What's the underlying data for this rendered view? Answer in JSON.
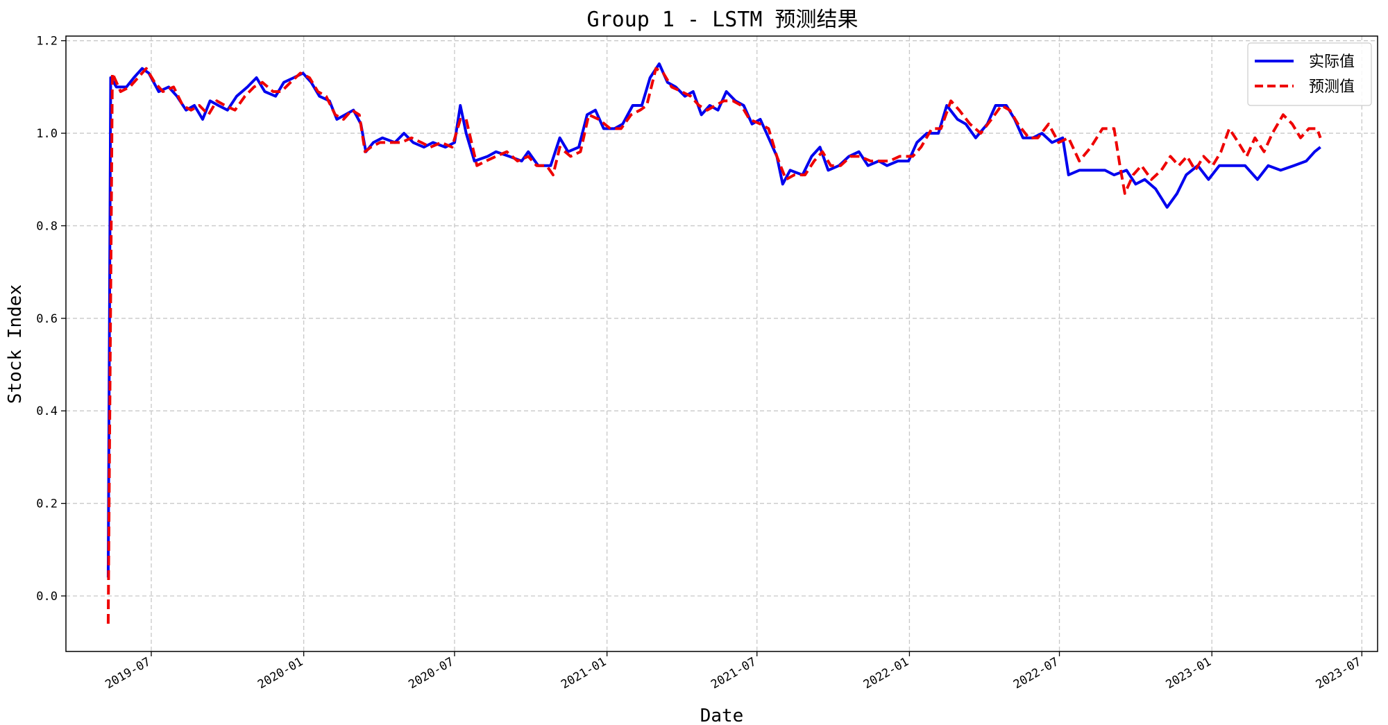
{
  "chart_data": {
    "type": "line",
    "title": "Group 1 - LSTM 预测结果",
    "xlabel": "Date",
    "ylabel": "Stock Index",
    "xlim": [
      "2019-03-20",
      "2023-07-20"
    ],
    "ylim": [
      -0.12,
      1.21
    ],
    "x_ticks": [
      "2019-07",
      "2020-01",
      "2020-07",
      "2021-01",
      "2021-07",
      "2022-01",
      "2022-07",
      "2023-01",
      "2023-07"
    ],
    "y_ticks": [
      0.0,
      0.2,
      0.4,
      0.6,
      0.8,
      1.0,
      1.2
    ],
    "y_tick_labels": [
      "0.0",
      "0.2",
      "0.4",
      "0.6",
      "0.8",
      "1.0",
      "1.2"
    ],
    "grid": true,
    "legend_position": "upper-right",
    "series": [
      {
        "name": "实际值",
        "color": "#0000ee",
        "style": "solid",
        "points": [
          [
            "2019-05-10",
            0.04
          ],
          [
            "2019-05-13",
            1.12
          ],
          [
            "2019-05-20",
            1.1
          ],
          [
            "2019-06-01",
            1.1
          ],
          [
            "2019-06-10",
            1.12
          ],
          [
            "2019-06-20",
            1.14
          ],
          [
            "2019-06-28",
            1.13
          ],
          [
            "2019-07-10",
            1.09
          ],
          [
            "2019-07-22",
            1.1
          ],
          [
            "2019-08-01",
            1.08
          ],
          [
            "2019-08-12",
            1.05
          ],
          [
            "2019-08-22",
            1.06
          ],
          [
            "2019-09-01",
            1.03
          ],
          [
            "2019-09-10",
            1.07
          ],
          [
            "2019-09-20",
            1.06
          ],
          [
            "2019-10-01",
            1.05
          ],
          [
            "2019-10-12",
            1.08
          ],
          [
            "2019-10-25",
            1.1
          ],
          [
            "2019-11-05",
            1.12
          ],
          [
            "2019-11-15",
            1.09
          ],
          [
            "2019-11-28",
            1.08
          ],
          [
            "2019-12-08",
            1.11
          ],
          [
            "2019-12-20",
            1.12
          ],
          [
            "2019-12-31",
            1.13
          ],
          [
            "2020-01-10",
            1.11
          ],
          [
            "2020-01-20",
            1.08
          ],
          [
            "2020-02-01",
            1.07
          ],
          [
            "2020-02-10",
            1.03
          ],
          [
            "2020-02-20",
            1.04
          ],
          [
            "2020-03-01",
            1.05
          ],
          [
            "2020-03-10",
            1.02
          ],
          [
            "2020-03-16",
            0.96
          ],
          [
            "2020-03-25",
            0.98
          ],
          [
            "2020-04-05",
            0.99
          ],
          [
            "2020-04-20",
            0.98
          ],
          [
            "2020-05-01",
            1.0
          ],
          [
            "2020-05-12",
            0.98
          ],
          [
            "2020-05-25",
            0.97
          ],
          [
            "2020-06-05",
            0.98
          ],
          [
            "2020-06-20",
            0.97
          ],
          [
            "2020-07-01",
            0.98
          ],
          [
            "2020-07-08",
            1.06
          ],
          [
            "2020-07-15",
            1.0
          ],
          [
            "2020-07-25",
            0.94
          ],
          [
            "2020-08-10",
            0.95
          ],
          [
            "2020-08-20",
            0.96
          ],
          [
            "2020-09-05",
            0.95
          ],
          [
            "2020-09-20",
            0.94
          ],
          [
            "2020-09-28",
            0.96
          ],
          [
            "2020-10-10",
            0.93
          ],
          [
            "2020-10-25",
            0.93
          ],
          [
            "2020-11-05",
            0.99
          ],
          [
            "2020-11-15",
            0.96
          ],
          [
            "2020-11-28",
            0.97
          ],
          [
            "2020-12-08",
            1.04
          ],
          [
            "2020-12-18",
            1.05
          ],
          [
            "2020-12-28",
            1.01
          ],
          [
            "2021-01-10",
            1.01
          ],
          [
            "2021-01-20",
            1.02
          ],
          [
            "2021-02-01",
            1.06
          ],
          [
            "2021-02-12",
            1.06
          ],
          [
            "2021-02-22",
            1.12
          ],
          [
            "2021-03-05",
            1.15
          ],
          [
            "2021-03-15",
            1.11
          ],
          [
            "2021-03-25",
            1.1
          ],
          [
            "2021-04-05",
            1.08
          ],
          [
            "2021-04-15",
            1.09
          ],
          [
            "2021-04-25",
            1.04
          ],
          [
            "2021-05-05",
            1.06
          ],
          [
            "2021-05-15",
            1.05
          ],
          [
            "2021-05-25",
            1.09
          ],
          [
            "2021-06-05",
            1.07
          ],
          [
            "2021-06-15",
            1.06
          ],
          [
            "2021-06-25",
            1.02
          ],
          [
            "2021-07-05",
            1.03
          ],
          [
            "2021-07-15",
            0.99
          ],
          [
            "2021-07-25",
            0.95
          ],
          [
            "2021-08-01",
            0.89
          ],
          [
            "2021-08-10",
            0.92
          ],
          [
            "2021-08-25",
            0.91
          ],
          [
            "2021-09-05",
            0.95
          ],
          [
            "2021-09-15",
            0.97
          ],
          [
            "2021-09-25",
            0.92
          ],
          [
            "2021-10-08",
            0.93
          ],
          [
            "2021-10-20",
            0.95
          ],
          [
            "2021-11-01",
            0.96
          ],
          [
            "2021-11-12",
            0.93
          ],
          [
            "2021-11-25",
            0.94
          ],
          [
            "2021-12-05",
            0.93
          ],
          [
            "2021-12-18",
            0.94
          ],
          [
            "2021-12-31",
            0.94
          ],
          [
            "2022-01-10",
            0.98
          ],
          [
            "2022-01-22",
            1.0
          ],
          [
            "2022-02-05",
            1.0
          ],
          [
            "2022-02-15",
            1.06
          ],
          [
            "2022-02-28",
            1.03
          ],
          [
            "2022-03-10",
            1.02
          ],
          [
            "2022-03-22",
            0.99
          ],
          [
            "2022-04-05",
            1.02
          ],
          [
            "2022-04-15",
            1.06
          ],
          [
            "2022-04-28",
            1.06
          ],
          [
            "2022-05-08",
            1.03
          ],
          [
            "2022-05-18",
            0.99
          ],
          [
            "2022-05-30",
            0.99
          ],
          [
            "2022-06-10",
            1.0
          ],
          [
            "2022-06-22",
            0.98
          ],
          [
            "2022-07-05",
            0.99
          ],
          [
            "2022-07-12",
            0.91
          ],
          [
            "2022-07-25",
            0.92
          ],
          [
            "2022-08-10",
            0.92
          ],
          [
            "2022-08-25",
            0.92
          ],
          [
            "2022-09-05",
            0.91
          ],
          [
            "2022-09-20",
            0.92
          ],
          [
            "2022-10-01",
            0.89
          ],
          [
            "2022-10-12",
            0.9
          ],
          [
            "2022-10-25",
            0.88
          ],
          [
            "2022-11-01",
            0.86
          ],
          [
            "2022-11-08",
            0.84
          ],
          [
            "2022-11-20",
            0.87
          ],
          [
            "2022-12-01",
            0.91
          ],
          [
            "2022-12-15",
            0.93
          ],
          [
            "2022-12-28",
            0.9
          ],
          [
            "2023-01-10",
            0.93
          ],
          [
            "2023-01-25",
            0.93
          ],
          [
            "2023-02-10",
            0.93
          ],
          [
            "2023-02-25",
            0.9
          ],
          [
            "2023-03-10",
            0.93
          ],
          [
            "2023-03-25",
            0.92
          ],
          [
            "2023-04-10",
            0.93
          ],
          [
            "2023-04-25",
            0.94
          ],
          [
            "2023-05-05",
            0.96
          ],
          [
            "2023-05-12",
            0.97
          ]
        ]
      },
      {
        "name": "预测值",
        "color": "#ee0000",
        "style": "dashed",
        "points": [
          [
            "2019-05-10",
            -0.06
          ],
          [
            "2019-05-15",
            1.13
          ],
          [
            "2019-05-25",
            1.09
          ],
          [
            "2019-06-05",
            1.1
          ],
          [
            "2019-06-15",
            1.12
          ],
          [
            "2019-06-25",
            1.14
          ],
          [
            "2019-07-05",
            1.11
          ],
          [
            "2019-07-15",
            1.09
          ],
          [
            "2019-07-28",
            1.1
          ],
          [
            "2019-08-08",
            1.06
          ],
          [
            "2019-08-18",
            1.05
          ],
          [
            "2019-08-28",
            1.06
          ],
          [
            "2019-09-08",
            1.04
          ],
          [
            "2019-09-18",
            1.07
          ],
          [
            "2019-09-28",
            1.06
          ],
          [
            "2019-10-10",
            1.05
          ],
          [
            "2019-10-22",
            1.08
          ],
          [
            "2019-11-02",
            1.1
          ],
          [
            "2019-11-12",
            1.11
          ],
          [
            "2019-11-25",
            1.09
          ],
          [
            "2019-12-05",
            1.09
          ],
          [
            "2019-12-16",
            1.11
          ],
          [
            "2019-12-28",
            1.13
          ],
          [
            "2020-01-08",
            1.12
          ],
          [
            "2020-01-18",
            1.09
          ],
          [
            "2020-01-28",
            1.08
          ],
          [
            "2020-02-08",
            1.04
          ],
          [
            "2020-02-18",
            1.03
          ],
          [
            "2020-02-28",
            1.05
          ],
          [
            "2020-03-08",
            1.04
          ],
          [
            "2020-03-15",
            0.96
          ],
          [
            "2020-03-22",
            0.97
          ],
          [
            "2020-04-02",
            0.98
          ],
          [
            "2020-04-15",
            0.98
          ],
          [
            "2020-04-28",
            0.98
          ],
          [
            "2020-05-10",
            0.99
          ],
          [
            "2020-05-22",
            0.98
          ],
          [
            "2020-06-02",
            0.97
          ],
          [
            "2020-06-15",
            0.98
          ],
          [
            "2020-06-28",
            0.97
          ],
          [
            "2020-07-08",
            1.03
          ],
          [
            "2020-07-15",
            1.03
          ],
          [
            "2020-07-28",
            0.93
          ],
          [
            "2020-08-08",
            0.94
          ],
          [
            "2020-08-20",
            0.95
          ],
          [
            "2020-09-02",
            0.96
          ],
          [
            "2020-09-15",
            0.94
          ],
          [
            "2020-09-28",
            0.95
          ],
          [
            "2020-10-08",
            0.93
          ],
          [
            "2020-10-20",
            0.93
          ],
          [
            "2020-10-28",
            0.91
          ],
          [
            "2020-11-05",
            0.97
          ],
          [
            "2020-11-18",
            0.95
          ],
          [
            "2020-11-30",
            0.96
          ],
          [
            "2020-12-10",
            1.04
          ],
          [
            "2020-12-22",
            1.03
          ],
          [
            "2021-01-05",
            1.01
          ],
          [
            "2021-01-18",
            1.01
          ],
          [
            "2021-01-30",
            1.04
          ],
          [
            "2021-02-10",
            1.05
          ],
          [
            "2021-02-18",
            1.06
          ],
          [
            "2021-03-01",
            1.14
          ],
          [
            "2021-03-10",
            1.13
          ],
          [
            "2021-03-20",
            1.1
          ],
          [
            "2021-04-01",
            1.09
          ],
          [
            "2021-04-12",
            1.08
          ],
          [
            "2021-04-22",
            1.06
          ],
          [
            "2021-05-02",
            1.05
          ],
          [
            "2021-05-12",
            1.06
          ],
          [
            "2021-05-22",
            1.07
          ],
          [
            "2021-06-02",
            1.07
          ],
          [
            "2021-06-12",
            1.06
          ],
          [
            "2021-06-22",
            1.03
          ],
          [
            "2021-07-05",
            1.02
          ],
          [
            "2021-07-15",
            1.01
          ],
          [
            "2021-07-25",
            0.95
          ],
          [
            "2021-08-05",
            0.9
          ],
          [
            "2021-08-15",
            0.91
          ],
          [
            "2021-08-28",
            0.91
          ],
          [
            "2021-09-08",
            0.94
          ],
          [
            "2021-09-18",
            0.96
          ],
          [
            "2021-09-28",
            0.93
          ],
          [
            "2021-10-10",
            0.93
          ],
          [
            "2021-10-22",
            0.95
          ],
          [
            "2021-11-02",
            0.95
          ],
          [
            "2021-11-15",
            0.94
          ],
          [
            "2021-11-28",
            0.94
          ],
          [
            "2021-12-08",
            0.94
          ],
          [
            "2021-12-20",
            0.95
          ],
          [
            "2022-01-05",
            0.95
          ],
          [
            "2022-01-15",
            0.97
          ],
          [
            "2022-01-28",
            1.01
          ],
          [
            "2022-02-08",
            1.01
          ],
          [
            "2022-02-20",
            1.07
          ],
          [
            "2022-03-02",
            1.05
          ],
          [
            "2022-03-15",
            1.02
          ],
          [
            "2022-03-28",
            1.0
          ],
          [
            "2022-04-10",
            1.03
          ],
          [
            "2022-04-22",
            1.06
          ],
          [
            "2022-05-02",
            1.05
          ],
          [
            "2022-05-12",
            1.02
          ],
          [
            "2022-05-25",
            0.99
          ],
          [
            "2022-06-05",
            0.99
          ],
          [
            "2022-06-18",
            1.02
          ],
          [
            "2022-06-30",
            0.98
          ],
          [
            "2022-07-12",
            0.99
          ],
          [
            "2022-07-25",
            0.94
          ],
          [
            "2022-08-08",
            0.97
          ],
          [
            "2022-08-22",
            1.01
          ],
          [
            "2022-09-05",
            1.01
          ],
          [
            "2022-09-12",
            0.93
          ],
          [
            "2022-09-18",
            0.87
          ],
          [
            "2022-09-28",
            0.91
          ],
          [
            "2022-10-08",
            0.93
          ],
          [
            "2022-10-20",
            0.9
          ],
          [
            "2022-11-01",
            0.92
          ],
          [
            "2022-11-12",
            0.95
          ],
          [
            "2022-11-22",
            0.93
          ],
          [
            "2022-12-02",
            0.95
          ],
          [
            "2022-12-12",
            0.92
          ],
          [
            "2022-12-22",
            0.95
          ],
          [
            "2023-01-02",
            0.93
          ],
          [
            "2023-01-12",
            0.96
          ],
          [
            "2023-01-22",
            1.01
          ],
          [
            "2023-02-02",
            0.98
          ],
          [
            "2023-02-12",
            0.95
          ],
          [
            "2023-02-22",
            0.99
          ],
          [
            "2023-03-05",
            0.96
          ],
          [
            "2023-03-15",
            1.0
          ],
          [
            "2023-03-28",
            1.04
          ],
          [
            "2023-04-08",
            1.02
          ],
          [
            "2023-04-18",
            0.99
          ],
          [
            "2023-04-28",
            1.01
          ],
          [
            "2023-05-08",
            1.01
          ],
          [
            "2023-05-12",
            0.99
          ]
        ]
      }
    ]
  }
}
